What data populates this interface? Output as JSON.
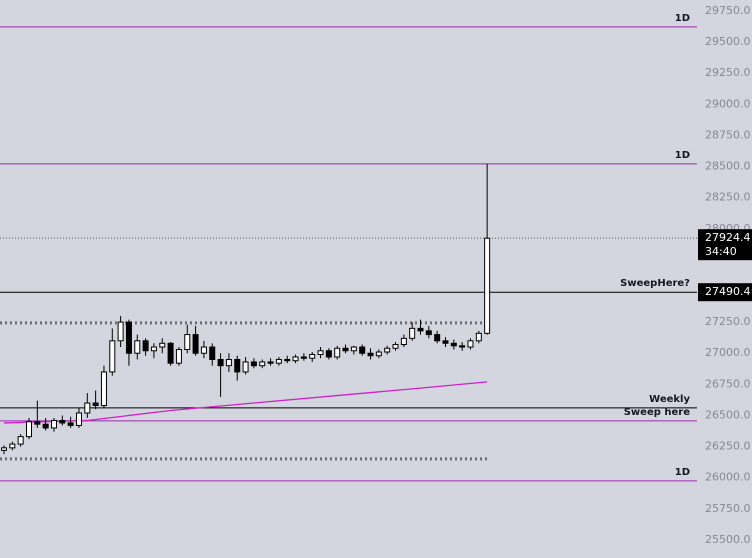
{
  "chart_data": {
    "type": "candlestick",
    "ylim": [
      25355,
      29838
    ],
    "yticks": [
      {
        "value": 25500,
        "label": "25500.0"
      },
      {
        "value": 25750,
        "label": "25750.0"
      },
      {
        "value": 26000,
        "label": "26000.0"
      },
      {
        "value": 26250,
        "label": "26250.0"
      },
      {
        "value": 26500,
        "label": "26500.0"
      },
      {
        "value": 26750,
        "label": "26750.0"
      },
      {
        "value": 27000,
        "label": "27000.0"
      },
      {
        "value": 27250,
        "label": "27250.0"
      },
      {
        "value": 28000,
        "label": "28000.0"
      },
      {
        "value": 28250,
        "label": "28250.0"
      },
      {
        "value": 28500,
        "label": "28500.0"
      },
      {
        "value": 28750,
        "label": "28750.0"
      },
      {
        "value": 29000,
        "label": "29000.0"
      },
      {
        "value": 29250,
        "label": "29250.0"
      },
      {
        "value": 29500,
        "label": "29500.0"
      },
      {
        "value": 29750,
        "label": "29750.0"
      }
    ],
    "up_color": "#ffffff",
    "down_color": "#000000",
    "candles": [
      [
        26220,
        26260,
        26190,
        26240
      ],
      [
        26240,
        26290,
        26220,
        26270
      ],
      [
        26270,
        26350,
        26250,
        26330
      ],
      [
        26330,
        26480,
        26310,
        26450
      ],
      [
        26450,
        26620,
        26400,
        26430
      ],
      [
        26430,
        26480,
        26380,
        26400
      ],
      [
        26400,
        26480,
        26370,
        26460
      ],
      [
        26460,
        26500,
        26420,
        26440
      ],
      [
        26440,
        26490,
        26400,
        26420
      ],
      [
        26420,
        26560,
        26400,
        26520
      ],
      [
        26520,
        26680,
        26480,
        26600
      ],
      [
        26600,
        26700,
        26550,
        26580
      ],
      [
        26580,
        26900,
        26560,
        26850
      ],
      [
        26850,
        27200,
        26820,
        27100
      ],
      [
        27100,
        27300,
        27050,
        27250
      ],
      [
        27250,
        27270,
        26900,
        27000
      ],
      [
        27000,
        27150,
        26950,
        27100
      ],
      [
        27100,
        27120,
        26980,
        27020
      ],
      [
        27020,
        27080,
        26960,
        27050
      ],
      [
        27050,
        27120,
        27000,
        27080
      ],
      [
        27080,
        27090,
        26900,
        26920
      ],
      [
        26920,
        27050,
        26900,
        27030
      ],
      [
        27030,
        27230,
        27000,
        27150
      ],
      [
        27150,
        27220,
        26980,
        27000
      ],
      [
        27000,
        27100,
        26960,
        27050
      ],
      [
        27050,
        27080,
        26900,
        26950
      ],
      [
        26950,
        27000,
        26650,
        26900
      ],
      [
        26900,
        27000,
        26850,
        26950
      ],
      [
        26950,
        26980,
        26780,
        26850
      ],
      [
        26850,
        26970,
        26830,
        26930
      ],
      [
        26930,
        26960,
        26880,
        26900
      ],
      [
        26900,
        26950,
        26880,
        26930
      ],
      [
        26930,
        26960,
        26900,
        26920
      ],
      [
        26920,
        26970,
        26900,
        26950
      ],
      [
        26950,
        26980,
        26920,
        26940
      ],
      [
        26940,
        26990,
        26920,
        26970
      ],
      [
        26970,
        27000,
        26940,
        26960
      ],
      [
        26960,
        27010,
        26930,
        26990
      ],
      [
        26990,
        27050,
        26960,
        27020
      ],
      [
        27020,
        27040,
        26950,
        26970
      ],
      [
        26970,
        27060,
        26950,
        27040
      ],
      [
        27040,
        27070,
        27000,
        27020
      ],
      [
        27020,
        27060,
        26990,
        27050
      ],
      [
        27050,
        27070,
        26980,
        27000
      ],
      [
        27000,
        27040,
        26950,
        26980
      ],
      [
        26980,
        27030,
        26960,
        27010
      ],
      [
        27010,
        27060,
        26990,
        27040
      ],
      [
        27040,
        27090,
        27020,
        27070
      ],
      [
        27070,
        27150,
        27050,
        27120
      ],
      [
        27120,
        27250,
        27100,
        27200
      ],
      [
        27200,
        27270,
        27150,
        27180
      ],
      [
        27180,
        27220,
        27120,
        27150
      ],
      [
        27150,
        27180,
        27080,
        27100
      ],
      [
        27100,
        27130,
        27050,
        27080
      ],
      [
        27080,
        27110,
        27030,
        27060
      ],
      [
        27060,
        27090,
        27020,
        27050
      ],
      [
        27050,
        27120,
        27030,
        27100
      ],
      [
        27100,
        27180,
        27080,
        27160
      ],
      [
        27160,
        28521,
        27150,
        27924
      ]
    ],
    "ma": {
      "color": "#d020c8",
      "x": [
        0,
        10,
        20,
        30,
        40,
        50,
        58
      ],
      "values": [
        26440,
        26460,
        26540,
        26600,
        26660,
        26720,
        26770
      ]
    },
    "levels": [
      {
        "value": 29622,
        "color": "#9c27b0",
        "label": "1D"
      },
      {
        "value": 28521,
        "color": "#9c27b0",
        "label": "1D"
      },
      {
        "value": 27490.4,
        "color": "#000000",
        "label": "SweepHere?"
      },
      {
        "value": 26561,
        "color": "#000000",
        "label": "Weekly"
      },
      {
        "value": 26457,
        "color": "#9c27b0",
        "label": "Sweep here"
      },
      {
        "value": 25975,
        "color": "#9c27b0",
        "label": "1D"
      }
    ],
    "dotted_levels": [
      27244,
      26151
    ],
    "last_price": 27924.4,
    "countdown": "34:40"
  }
}
